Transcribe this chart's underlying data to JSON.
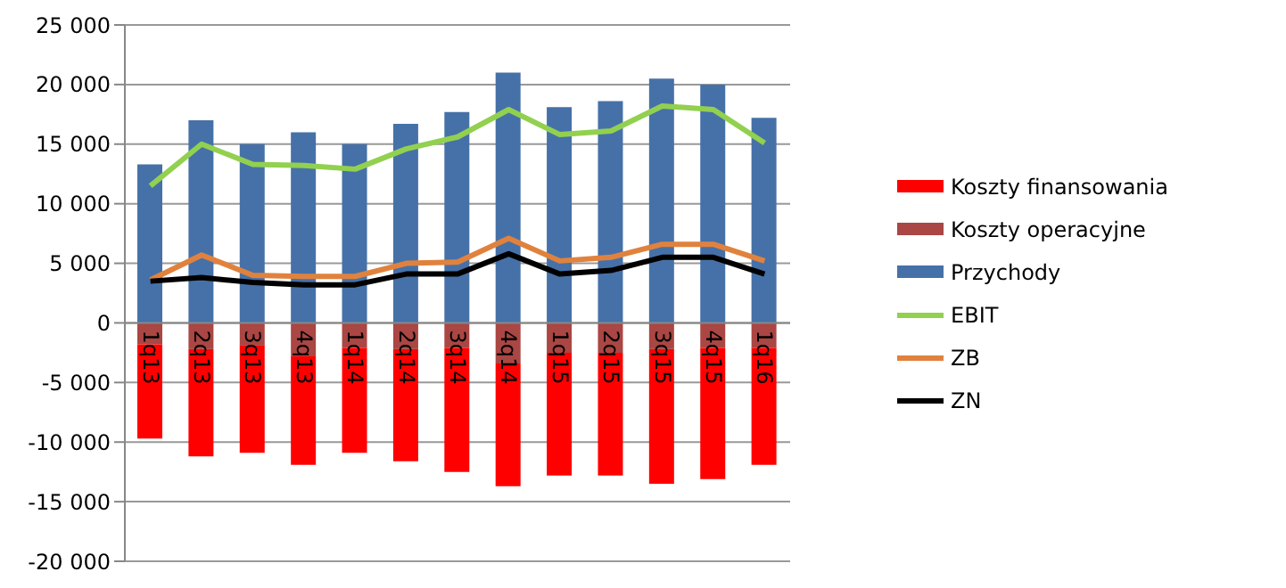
{
  "chart_data": {
    "type": "bar",
    "stacked": true,
    "categories": [
      "1q13",
      "2q13",
      "3q13",
      "4q13",
      "1q14",
      "2q14",
      "3q14",
      "4q14",
      "1q15",
      "2q15",
      "3q15",
      "4q15",
      "1q16"
    ],
    "series": [
      {
        "name": "Koszty operacyjne",
        "color": "#aa4643",
        "values": [
          -1800,
          -2200,
          -1900,
          -2800,
          -2100,
          -2200,
          -2100,
          -3400,
          -2500,
          -2500,
          -2200,
          -2100,
          -2100
        ]
      },
      {
        "name": "Koszty finansowania",
        "color": "#ff0000",
        "values": [
          -7900,
          -9000,
          -9000,
          -9100,
          -8800,
          -9400,
          -10400,
          -10300,
          -10300,
          -10300,
          -11300,
          -11000,
          -9800
        ]
      },
      {
        "name": "Przychody",
        "color": "#4671a8",
        "values": [
          13300,
          17000,
          15000,
          16000,
          15000,
          16700,
          17700,
          21000,
          18100,
          18600,
          20500,
          20000,
          17200
        ]
      },
      {
        "name": "EBIT",
        "type": "line",
        "color": "#92d050",
        "values": [
          11500,
          15000,
          13300,
          13200,
          12900,
          14600,
          15600,
          17900,
          15800,
          16100,
          18200,
          17900,
          15100
        ]
      },
      {
        "name": "ZB",
        "type": "line",
        "color": "#e0823d",
        "values": [
          3600,
          5700,
          4000,
          3900,
          3900,
          5000,
          5100,
          7100,
          5200,
          5500,
          6600,
          6600,
          5200
        ]
      },
      {
        "name": "ZN",
        "type": "line",
        "color": "#000000",
        "values": [
          3500,
          3800,
          3400,
          3200,
          3200,
          4100,
          4100,
          5800,
          4100,
          4400,
          5500,
          5500,
          4100
        ]
      }
    ],
    "ylim": [
      -20000,
      25000
    ],
    "yticks": [
      {
        "value": -20000,
        "label": "-20 000"
      },
      {
        "value": -15000,
        "label": "-15 000"
      },
      {
        "value": -10000,
        "label": "-10 000"
      },
      {
        "value": -5000,
        "label": "-5 000"
      },
      0,
      {
        "value": 5000,
        "label": "5 000"
      },
      {
        "value": 10000,
        "label": "10 000"
      },
      {
        "value": 15000,
        "label": "15 000"
      },
      {
        "value": 20000,
        "label": "20 000"
      },
      {
        "value": 25000,
        "label": "25 000"
      }
    ],
    "grid": "y",
    "legend": "right",
    "marker": "none",
    "line_style": "solid"
  }
}
